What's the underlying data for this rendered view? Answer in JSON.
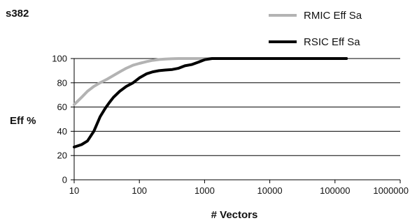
{
  "chart_data": {
    "type": "line",
    "title": "s382",
    "xlabel": "# Vectors",
    "ylabel": "Eff %",
    "x_scale": "log",
    "xlim": [
      10,
      1000000
    ],
    "ylim": [
      0,
      100
    ],
    "x_ticks": [
      "10",
      "100",
      "1000",
      "10000",
      "100000",
      "1000000"
    ],
    "y_ticks": [
      "0",
      "20",
      "40",
      "60",
      "80",
      "100"
    ],
    "grid": "horizontal",
    "legend_position": "top-right",
    "series": [
      {
        "name": "RMIC Eff Sa",
        "color": "#b3b3b3",
        "x": [
          10,
          13,
          16,
          20,
          25,
          32,
          40,
          50,
          63,
          80,
          100,
          130,
          160,
          200,
          250,
          320,
          400,
          1000,
          10000,
          100000,
          150000
        ],
        "y": [
          62,
          68,
          73,
          77,
          80,
          83,
          86,
          89,
          92,
          94.5,
          96,
          97.5,
          98.5,
          99.2,
          99.6,
          99.9,
          100,
          100,
          100,
          100,
          100
        ]
      },
      {
        "name": "RSIC Eff Sa",
        "color": "#000000",
        "x": [
          10,
          13,
          16,
          20,
          25,
          30,
          35,
          40,
          50,
          63,
          80,
          100,
          130,
          160,
          200,
          250,
          320,
          400,
          500,
          630,
          800,
          1000,
          1300,
          1600,
          2000,
          10000,
          100000,
          150000
        ],
        "y": [
          27,
          29,
          32,
          40,
          52,
          59,
          64,
          68,
          73,
          77,
          80,
          84,
          87.5,
          89,
          90,
          90.5,
          91,
          92,
          94,
          95,
          97,
          99,
          100,
          100,
          100,
          100,
          100,
          100
        ]
      }
    ]
  }
}
